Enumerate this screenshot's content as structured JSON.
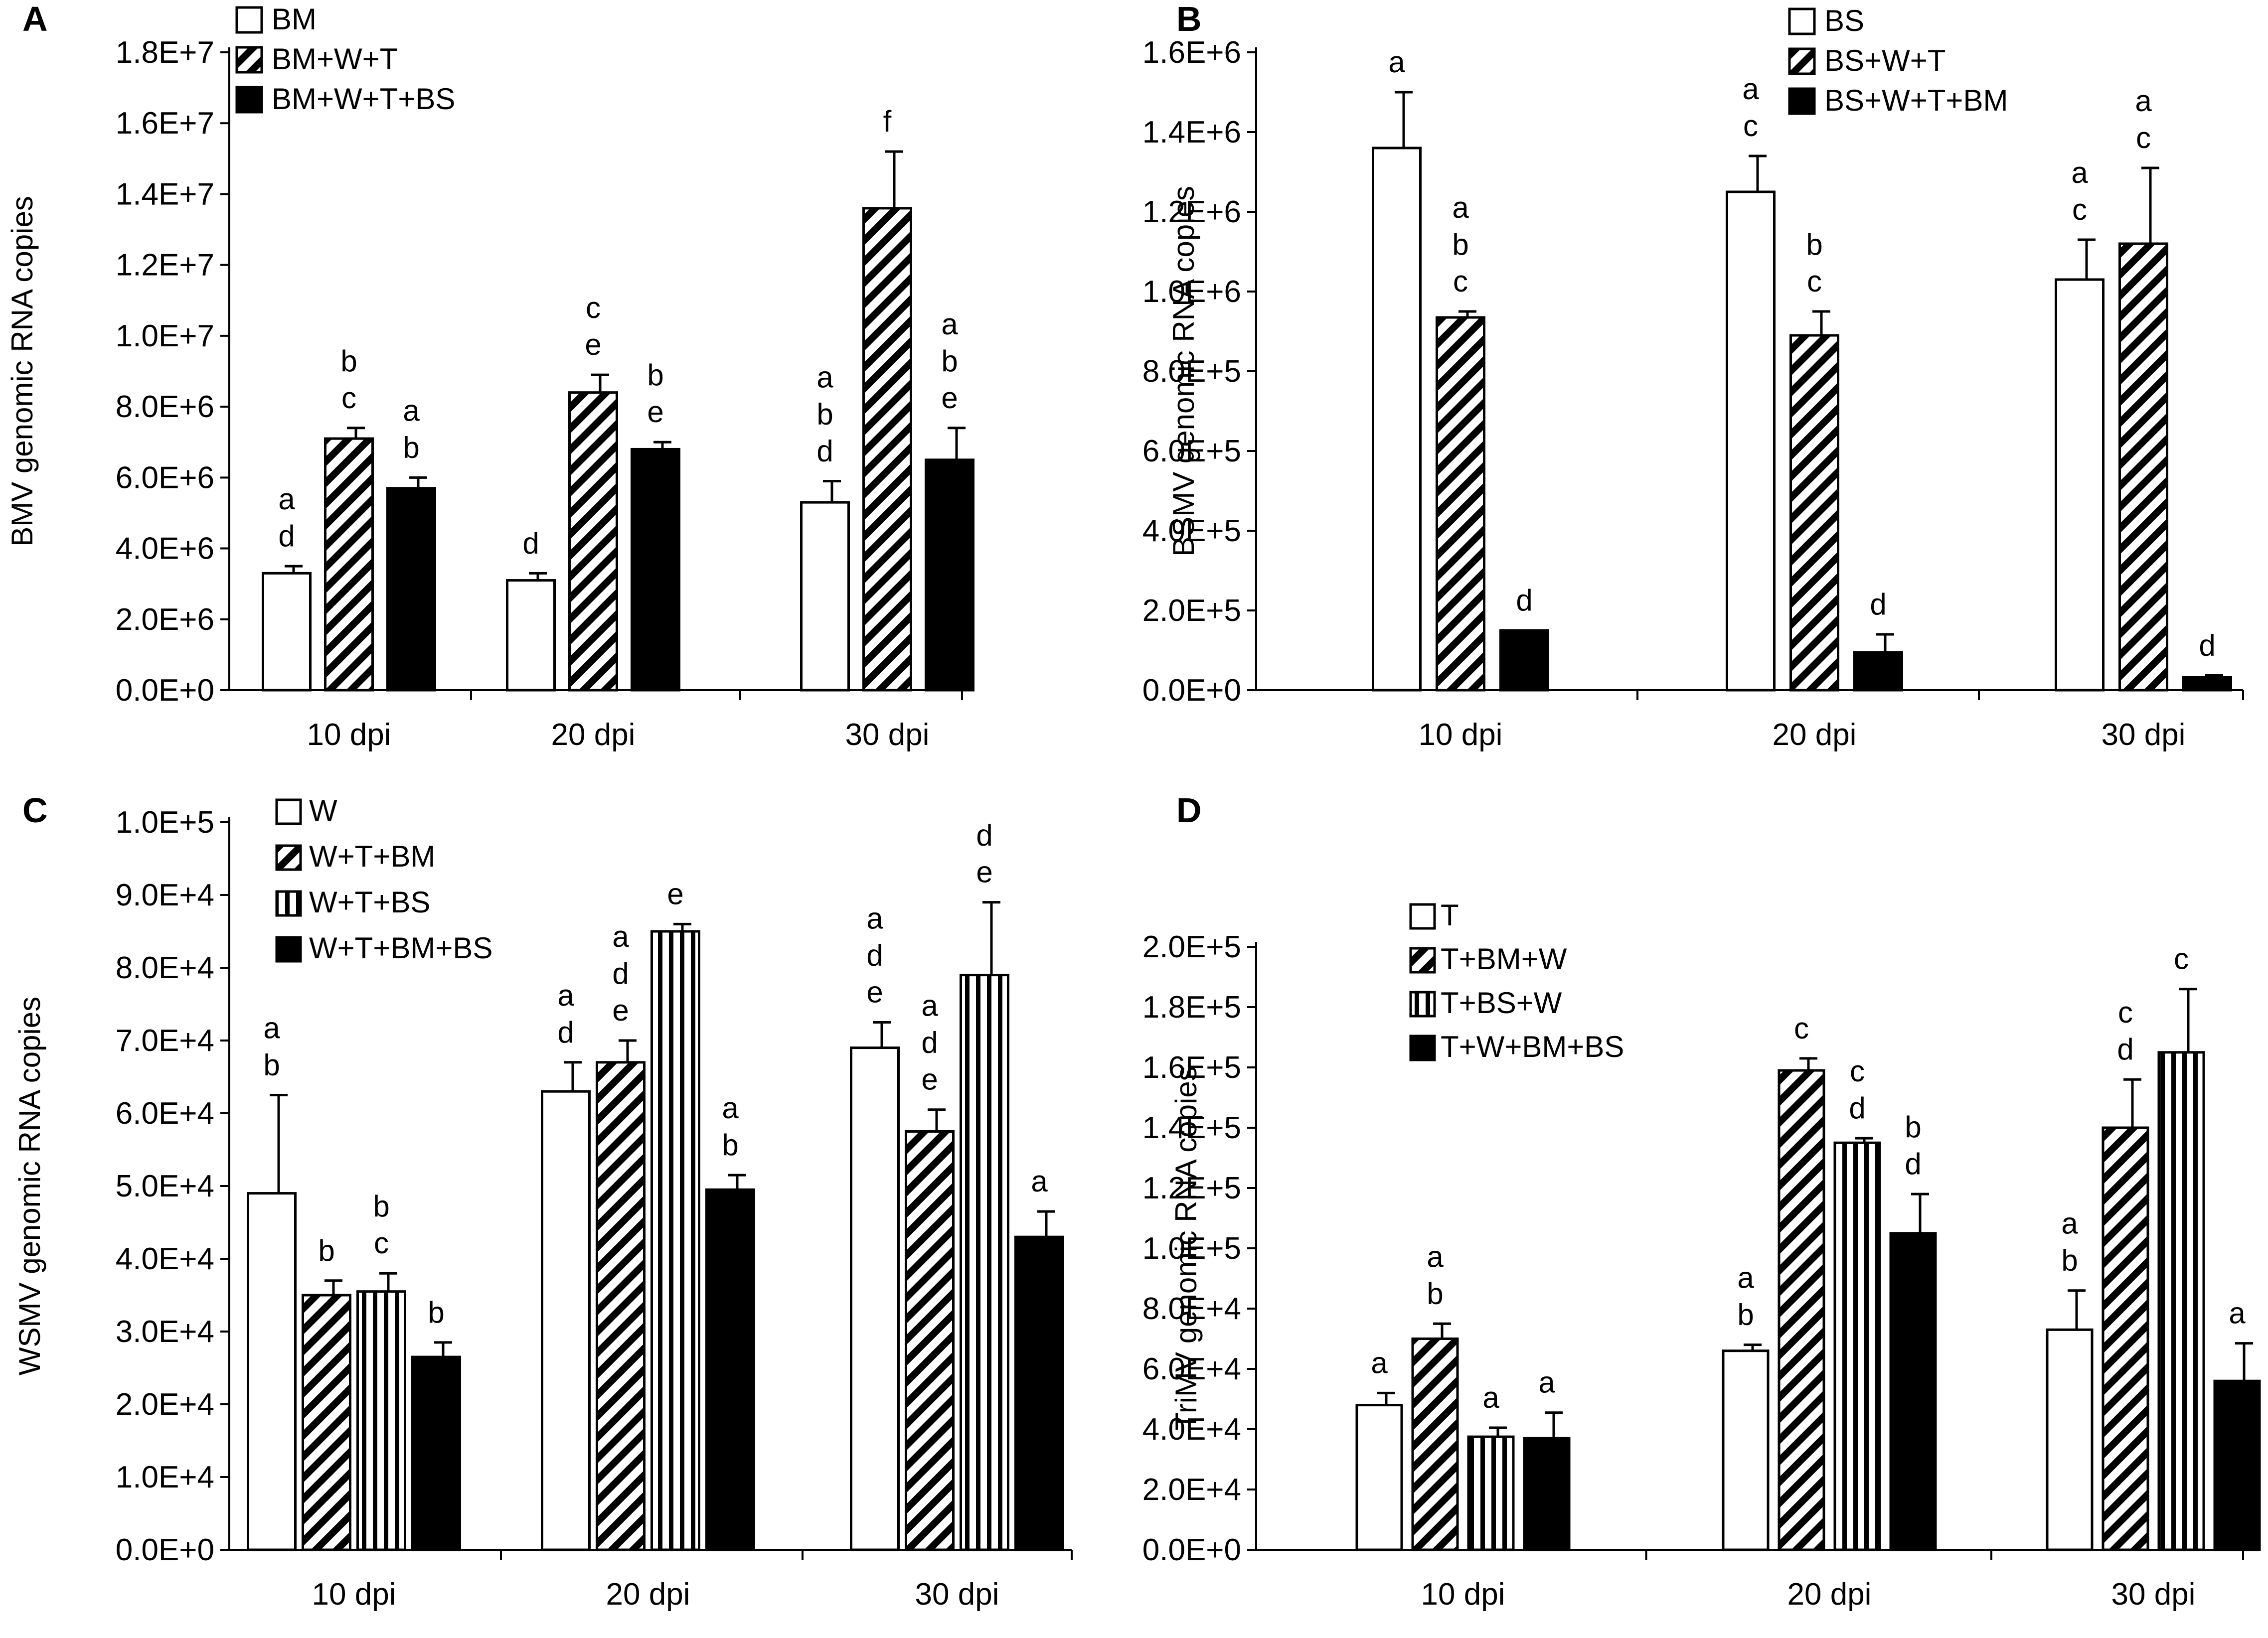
{
  "chart_data": [
    {
      "panel": "A",
      "type": "bar",
      "ylabel": "BMV genomic RNA copies",
      "yticks": [
        "0.0E+0",
        "2.0E+6",
        "4.0E+6",
        "6.0E+6",
        "8.0E+6",
        "1.0E+7",
        "1.2E+7",
        "1.4E+7",
        "1.6E+7",
        "1.8E+7"
      ],
      "ylim": [
        0,
        18000000
      ],
      "categories": [
        "10 dpi",
        "20 dpi",
        "30 dpi"
      ],
      "series": [
        {
          "name": "BM",
          "pattern": "white",
          "values": [
            3300000,
            3100000,
            5300000
          ],
          "errors": [
            200000,
            200000,
            600000
          ],
          "letters": [
            [
              "a",
              "d"
            ],
            [
              "d"
            ],
            [
              "a",
              "b",
              "d"
            ]
          ]
        },
        {
          "name": "BM+W+T",
          "pattern": "diagonal",
          "values": [
            7100000,
            8400000,
            13600000
          ],
          "errors": [
            300000,
            500000,
            1600000
          ],
          "letters": [
            [
              "b",
              "c"
            ],
            [
              "c",
              "e"
            ],
            [
              "f"
            ]
          ]
        },
        {
          "name": "BM+W+T+BS",
          "pattern": "black",
          "values": [
            5700000,
            6800000,
            6500000
          ],
          "errors": [
            300000,
            200000,
            900000
          ],
          "letters": [
            [
              "a",
              "b"
            ],
            [
              "b",
              "e"
            ],
            [
              "a",
              "b",
              "e"
            ]
          ]
        }
      ]
    },
    {
      "panel": "B",
      "type": "bar",
      "ylabel": "BSMV genomic RNA copies",
      "yticks": [
        "0.0E+0",
        "2.0E+5",
        "4.0E+5",
        "6.0E+5",
        "8.0E+5",
        "1.0E+6",
        "1.2E+6",
        "1.4E+6",
        "1.6E+6"
      ],
      "ylim": [
        0,
        1600000
      ],
      "categories": [
        "10 dpi",
        "20 dpi",
        "30 dpi"
      ],
      "series": [
        {
          "name": "BS",
          "pattern": "white",
          "values": [
            1360000,
            1250000,
            1030000
          ],
          "errors": [
            140000,
            90000,
            100000
          ],
          "letters": [
            [
              "a"
            ],
            [
              "a",
              "c"
            ],
            [
              "a",
              "c"
            ]
          ]
        },
        {
          "name": "BS+W+T",
          "pattern": "diagonal",
          "values": [
            935000,
            890000,
            1120000
          ],
          "errors": [
            15000,
            60000,
            190000
          ],
          "letters": [
            [
              "a",
              "b",
              "c"
            ],
            [
              "b",
              "c"
            ],
            [
              "a",
              "c"
            ]
          ]
        },
        {
          "name": "BS+W+T+BM",
          "pattern": "black",
          "values": [
            150000,
            95000,
            32000
          ],
          "errors": [
            0,
            45000,
            5000
          ],
          "letters": [
            [
              "d"
            ],
            [
              "d"
            ],
            [
              "d"
            ]
          ]
        }
      ]
    },
    {
      "panel": "C",
      "type": "bar",
      "ylabel": "WSMV genomic RNA copies",
      "yticks": [
        "0.0E+0",
        "1.0E+4",
        "2.0E+4",
        "3.0E+4",
        "4.0E+4",
        "5.0E+4",
        "6.0E+4",
        "7.0E+4",
        "8.0E+4",
        "9.0E+4",
        "1.0E+5"
      ],
      "ylim": [
        0,
        100000
      ],
      "categories": [
        "10 dpi",
        "20 dpi",
        "30 dpi"
      ],
      "series": [
        {
          "name": "W",
          "pattern": "white",
          "values": [
            49000,
            63000,
            69000
          ],
          "errors": [
            13500,
            4000,
            3500
          ],
          "letters": [
            [
              "a",
              "b"
            ],
            [
              "a",
              "d"
            ],
            [
              "a",
              "d",
              "e"
            ]
          ]
        },
        {
          "name": "W+T+BM",
          "pattern": "diagonal",
          "values": [
            35000,
            67000,
            57500
          ],
          "errors": [
            2000,
            3000,
            3000
          ],
          "letters": [
            [
              "b"
            ],
            [
              "a",
              "d",
              "e"
            ],
            [
              "a",
              "d",
              "e"
            ]
          ]
        },
        {
          "name": "W+T+BS",
          "pattern": "vertical",
          "values": [
            35500,
            85000,
            79000
          ],
          "errors": [
            2500,
            1000,
            10000
          ],
          "letters": [
            [
              "b",
              "c"
            ],
            [
              "e"
            ],
            [
              "d",
              "e"
            ]
          ]
        },
        {
          "name": "W+T+BM+BS",
          "pattern": "black",
          "values": [
            26500,
            49500,
            43000
          ],
          "errors": [
            2000,
            2000,
            3500
          ],
          "letters": [
            [
              "b"
            ],
            [
              "a",
              "b"
            ],
            [
              "a"
            ]
          ]
        }
      ]
    },
    {
      "panel": "D",
      "type": "bar",
      "ylabel": "TriMV genomic RNA copies",
      "yticks": [
        "0.0E+0",
        "2.0E+4",
        "4.0E+4",
        "6.0E+4",
        "8.0E+4",
        "1.0E+5",
        "1.2E+5",
        "1.4E+5",
        "1.6E+5",
        "1.8E+5",
        "2.0E+5"
      ],
      "ylim": [
        0,
        200000
      ],
      "categories": [
        "10 dpi",
        "20 dpi",
        "30 dpi"
      ],
      "series": [
        {
          "name": "T",
          "pattern": "white",
          "values": [
            48000,
            66000,
            73000
          ],
          "errors": [
            4000,
            2000,
            13000
          ],
          "letters": [
            [
              "a"
            ],
            [
              "a",
              "b"
            ],
            [
              "a",
              "b"
            ]
          ]
        },
        {
          "name": "T+BM+W",
          "pattern": "diagonal",
          "values": [
            70000,
            159000,
            140000
          ],
          "errors": [
            5000,
            4000,
            16000
          ],
          "letters": [
            [
              "a",
              "b"
            ],
            [
              "c"
            ],
            [
              "c",
              "d"
            ]
          ]
        },
        {
          "name": "T+BS+W",
          "pattern": "vertical",
          "values": [
            37500,
            135000,
            165000
          ],
          "errors": [
            3000,
            1500,
            21000
          ],
          "letters": [
            [
              "a"
            ],
            [
              "c",
              "d"
            ],
            [
              "c"
            ]
          ]
        },
        {
          "name": "T+W+BM+BS",
          "pattern": "black",
          "values": [
            37000,
            105000,
            56000
          ],
          "errors": [
            8500,
            13000,
            12500
          ],
          "letters": [
            [
              "a"
            ],
            [
              "b",
              "d"
            ],
            [
              "a"
            ]
          ]
        }
      ]
    }
  ]
}
